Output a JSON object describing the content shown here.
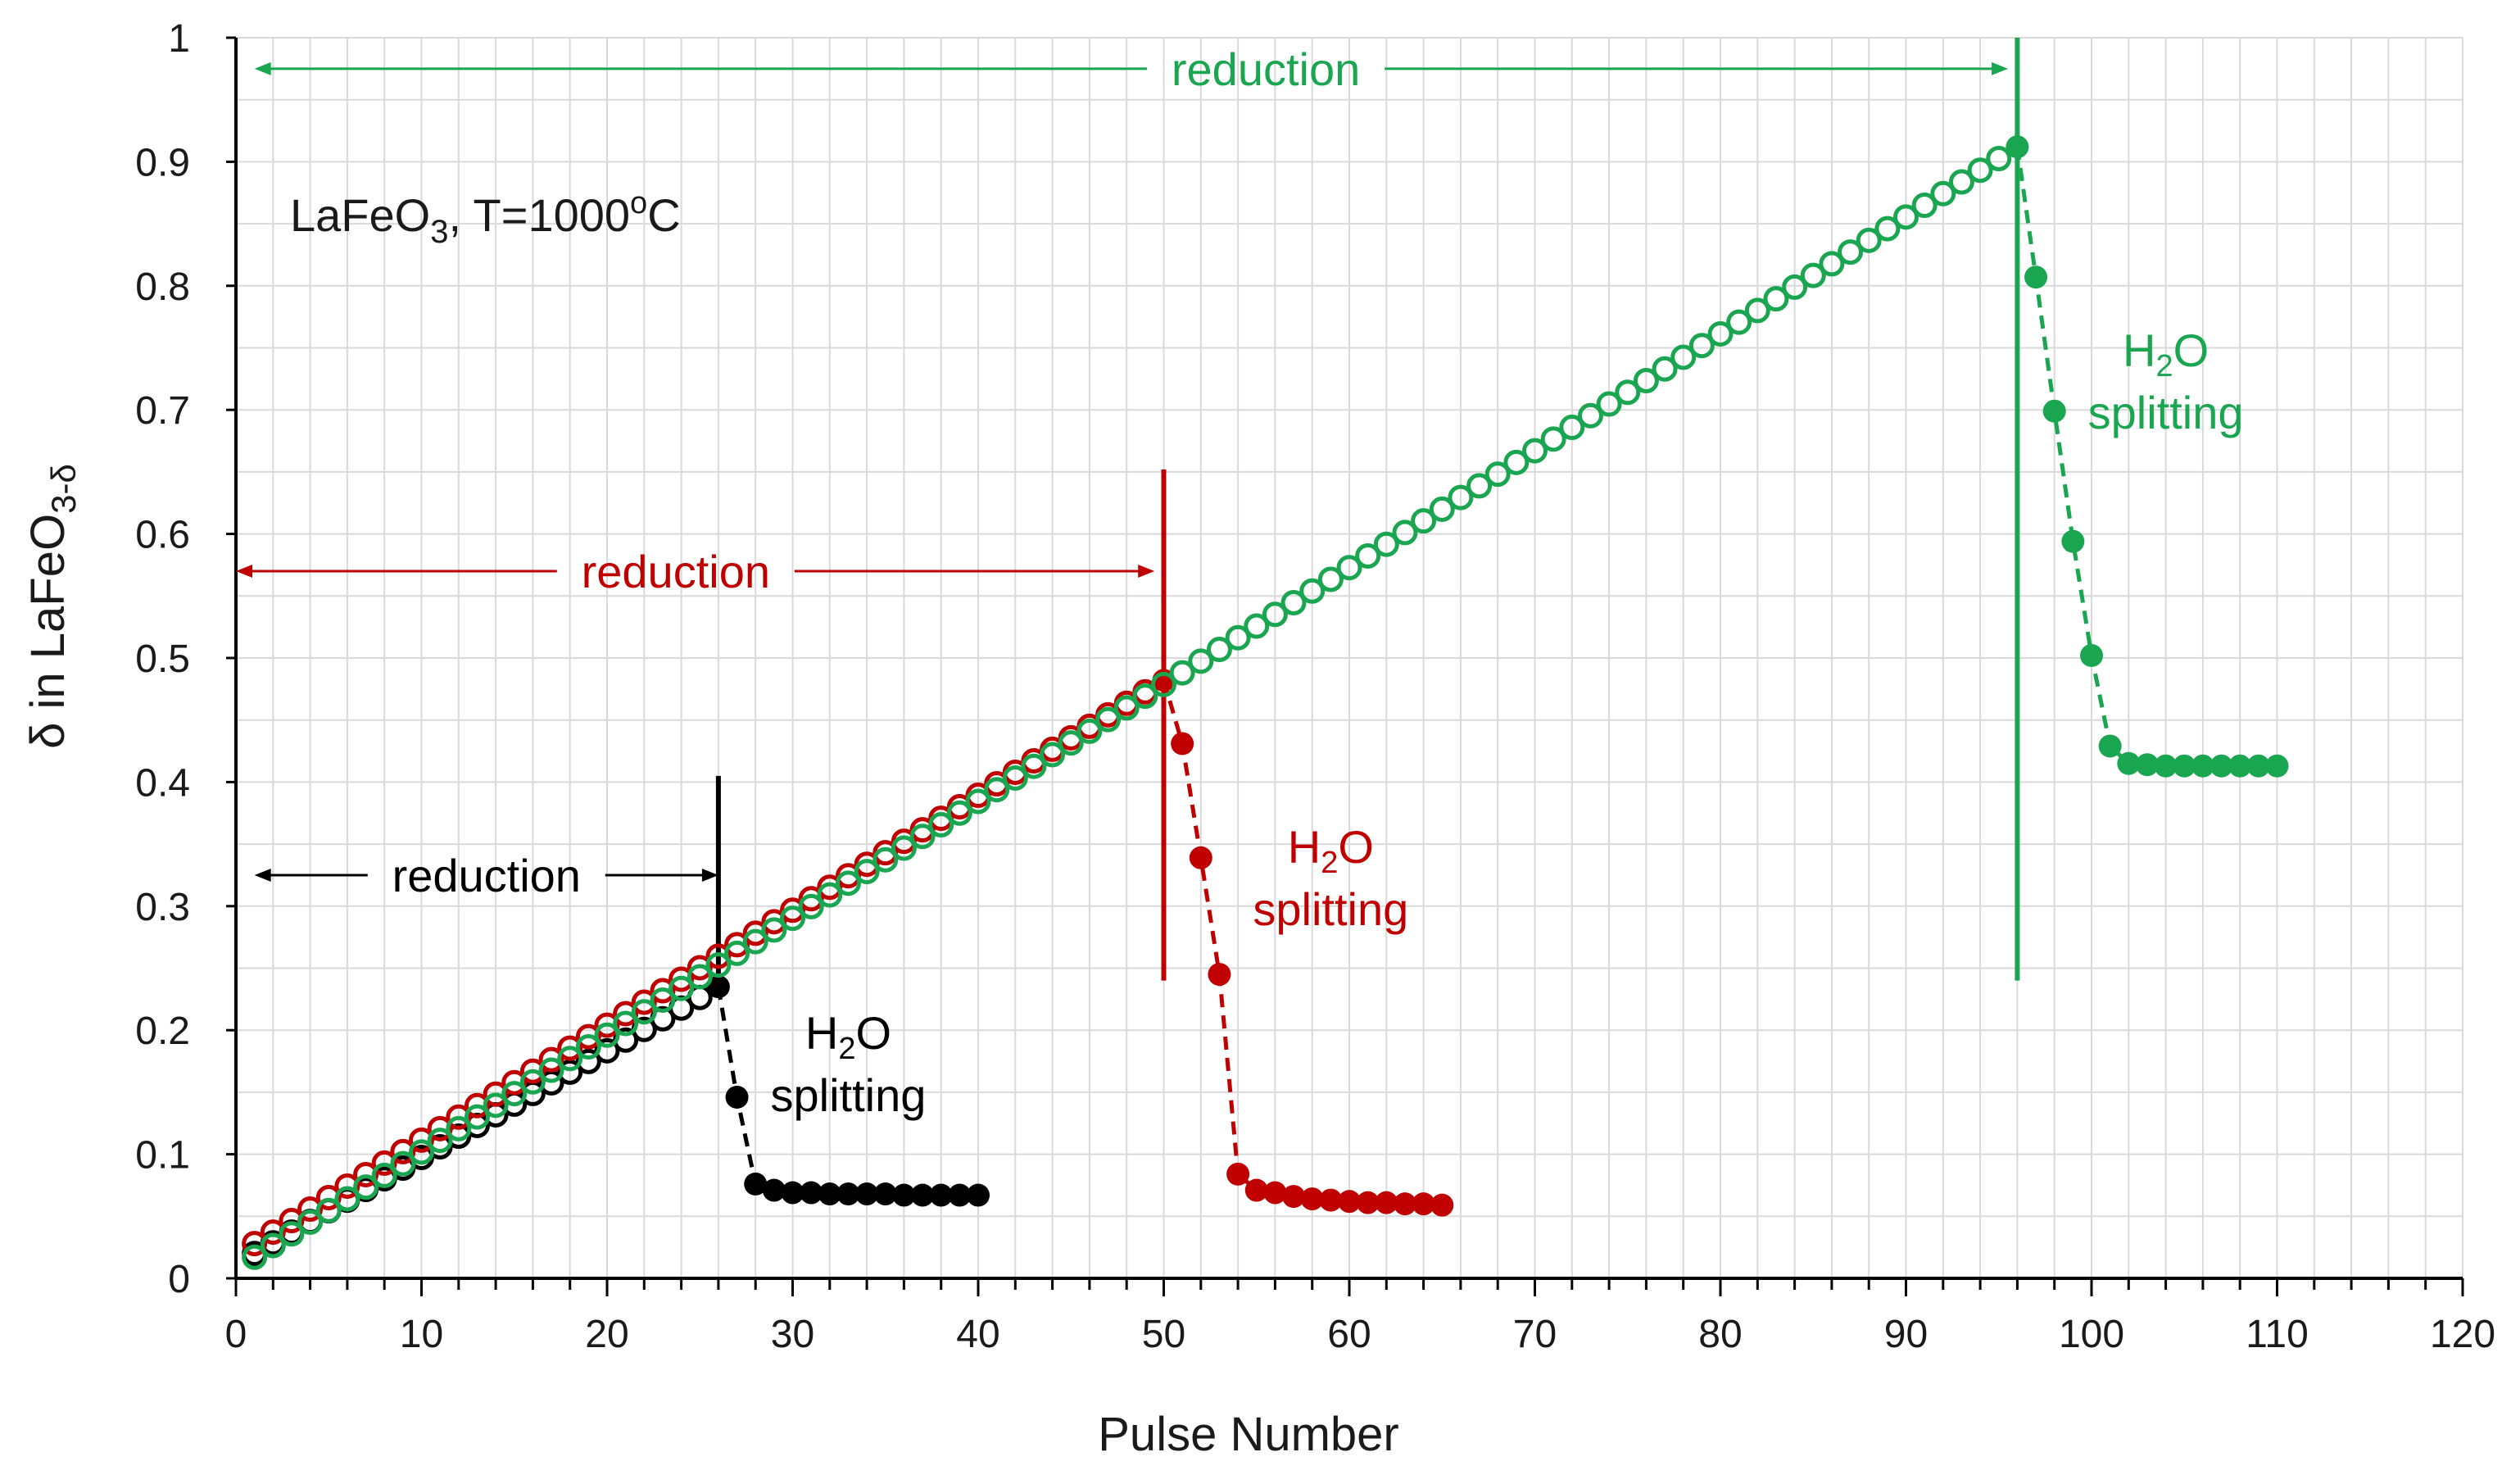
{
  "chart_data": {
    "type": "scatter",
    "title": "",
    "xlabel": "Pulse Number",
    "ylabel": "δ in LaFeO3-δ",
    "ylabel_parts": {
      "main": "δ in LaFeO",
      "sub": "3-δ"
    },
    "xlim": [
      0,
      120
    ],
    "ylim": [
      0,
      1
    ],
    "x_ticks": [
      "0",
      "10",
      "20",
      "30",
      "40",
      "50",
      "60",
      "70",
      "80",
      "90",
      "100",
      "110",
      "120"
    ],
    "y_ticks": [
      "0",
      "0.1",
      "0.2",
      "0.3",
      "0.4",
      "0.5",
      "0.6",
      "0.7",
      "0.8",
      "0.9",
      "1"
    ],
    "grid": true,
    "colors": {
      "black": "#000000",
      "red": "#c00000",
      "green": "#1aa550",
      "grid": "#d9d9d9"
    },
    "condition_label": {
      "part1": "LaFeO",
      "sub": "3",
      "part2": ", T=1000",
      "sup": "o",
      "part3": "C"
    },
    "series": [
      {
        "name": "black",
        "color": "#000000",
        "reduction": {
          "x_start": 1,
          "x_end": 26,
          "y_start": 0.02,
          "y_end": 0.235
        },
        "splitting_x": [
          26,
          27,
          28,
          29,
          30,
          31,
          32,
          33,
          34,
          35,
          36,
          37,
          38,
          39,
          40
        ],
        "splitting_y": [
          0.235,
          0.146,
          0.076,
          0.071,
          0.069,
          0.069,
          0.068,
          0.068,
          0.068,
          0.068,
          0.067,
          0.067,
          0.067,
          0.067,
          0.067
        ],
        "marker_line_x": 26,
        "marker_line_ymax": 0.405,
        "reduction_label": "reduction",
        "splitting_label": {
          "h": "H",
          "sub": "2",
          "o": "O",
          "line2": "splitting"
        }
      },
      {
        "name": "red",
        "color": "#c00000",
        "reduction": {
          "x_start": 1,
          "x_end": 50,
          "y_start": 0.028,
          "y_end": 0.482
        },
        "splitting_x": [
          50,
          51,
          52,
          53,
          54,
          55,
          56,
          57,
          58,
          59,
          60,
          61,
          62,
          63,
          64,
          65
        ],
        "splitting_y": [
          0.482,
          0.431,
          0.339,
          0.245,
          0.084,
          0.071,
          0.069,
          0.066,
          0.064,
          0.063,
          0.062,
          0.061,
          0.061,
          0.06,
          0.06,
          0.059
        ],
        "marker_line_x": 50,
        "marker_line_ymax": 0.652,
        "reduction_label": "reduction",
        "splitting_label": {
          "h": "H",
          "sub": "2",
          "o": "O",
          "line2": "splitting"
        }
      },
      {
        "name": "green",
        "color": "#1aa550",
        "reduction": {
          "x_start": 1,
          "x_end": 96,
          "y_start": 0.017,
          "y_end": 0.912
        },
        "splitting_x": [
          96,
          97,
          98,
          99,
          100,
          101,
          102,
          103,
          104,
          105,
          106,
          107,
          108,
          109,
          110
        ],
        "splitting_y": [
          0.912,
          0.807,
          0.699,
          0.594,
          0.502,
          0.429,
          0.415,
          0.414,
          0.413,
          0.413,
          0.413,
          0.413,
          0.413,
          0.413,
          0.413
        ],
        "marker_line_x": 96,
        "marker_line_ymax": 1.0,
        "reduction_label": "reduction",
        "splitting_label": {
          "h": "H",
          "sub": "2",
          "o": "O",
          "line2": "splitting"
        }
      }
    ]
  }
}
